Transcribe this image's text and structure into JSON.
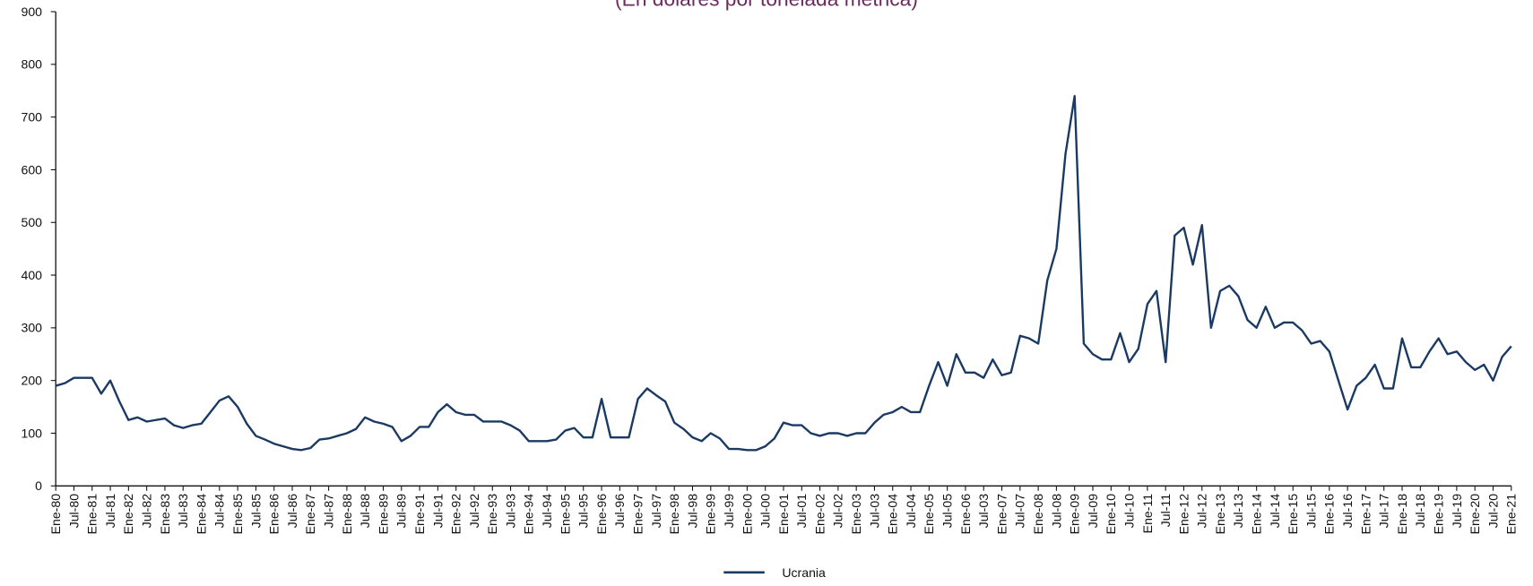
{
  "chart_data": {
    "type": "line",
    "subtitle": "(En dólares por tonelada métrica)",
    "categories": [
      "Ene-80",
      null,
      "Jul-80",
      null,
      "Ene-81",
      null,
      "Jul-81",
      null,
      "Ene-82",
      null,
      "Jul-82",
      null,
      "Ene-83",
      null,
      "Jul-83",
      null,
      "Ene-84",
      null,
      "Jul-84",
      null,
      "Ene-85",
      null,
      "Jul-85",
      null,
      "Ene-86",
      null,
      "Jul-86",
      null,
      "Ene-87",
      null,
      "Jul-87",
      null,
      "Ene-88",
      null,
      "Jul-88",
      null,
      "Ene-89",
      null,
      "Jul-89",
      null,
      "Ene-91",
      null,
      "Jul-91",
      null,
      "Ene-92",
      null,
      "Jul-92",
      null,
      "Ene-93",
      null,
      "Jul-93",
      null,
      "Ene-94",
      null,
      "Jul-94",
      null,
      "Ene-95",
      null,
      "Jul-95",
      null,
      "Ene-96",
      null,
      "Jul-96",
      null,
      "Ene-97",
      null,
      "Jul-97",
      null,
      "Ene-98",
      null,
      "Jul-98",
      null,
      "Ene-99",
      null,
      "Jul-99",
      null,
      "Ene-00",
      null,
      "Jul-00",
      null,
      "Ene-01",
      null,
      "Jul-01",
      null,
      "Ene-02",
      null,
      "Jul-02",
      null,
      "Ene-03",
      null,
      "Jul-03",
      null,
      "Ene-04",
      null,
      "Jul-04",
      null,
      "Ene-05",
      null,
      "Jul-05",
      null,
      "Ene-06",
      null,
      "Jul-03",
      null,
      "Ene-07",
      null,
      "Jul-07",
      null,
      "Ene-08",
      null,
      "Jul-08",
      null,
      "Ene-09",
      null,
      "Jul-09",
      null,
      "Ene-10",
      null,
      "Jul-10",
      null,
      "Ene-11",
      null,
      "Jul-11",
      null,
      "Ene-12",
      null,
      "Jul-12",
      null,
      "Ene-13",
      null,
      "Jul-13",
      null,
      "Ene-14",
      null,
      "Jul-14",
      null,
      "Ene-15",
      null,
      "Jul-15",
      null,
      "Ene-16",
      null,
      "Jul-16",
      null,
      "Ene-17",
      null,
      "Jul-17",
      null,
      "Ene-18",
      null,
      "Jul-18",
      null,
      "Ene-19",
      null,
      "Jul-19",
      null,
      "Ene-20",
      null,
      "Jul-20",
      null,
      "Ene-21"
    ],
    "series": [
      {
        "name": "Ucrania",
        "color": "#1a3a63",
        "values": [
          190,
          195,
          205,
          205,
          205,
          175,
          200,
          160,
          125,
          130,
          122,
          125,
          128,
          115,
          110,
          115,
          118,
          140,
          162,
          170,
          150,
          118,
          95,
          88,
          80,
          75,
          70,
          68,
          72,
          88,
          90,
          95,
          100,
          108,
          130,
          122,
          118,
          112,
          85,
          95,
          112,
          112,
          140,
          155,
          140,
          135,
          135,
          122,
          122,
          122,
          115,
          105,
          85,
          85,
          85,
          88,
          105,
          110,
          92,
          92,
          165,
          92,
          92,
          92,
          165,
          185,
          172,
          160,
          120,
          108,
          92,
          85,
          100,
          90,
          70,
          70,
          68,
          68,
          75,
          90,
          120,
          115,
          115,
          100,
          95,
          100,
          100,
          95,
          100,
          100,
          120,
          135,
          140,
          150,
          140,
          140,
          190,
          235,
          190,
          250,
          215,
          215,
          205,
          240,
          210,
          215,
          285,
          280,
          270,
          390,
          450,
          630,
          740,
          270,
          250,
          240,
          240,
          290,
          235,
          260,
          345,
          370,
          235,
          475,
          490,
          420,
          495,
          300,
          370,
          380,
          360,
          315,
          300,
          340,
          300,
          310,
          310,
          295,
          270,
          275,
          255,
          200,
          145,
          190,
          205,
          230,
          185,
          185,
          280,
          225,
          225,
          255,
          280,
          250,
          255,
          235,
          220,
          230,
          200,
          245,
          265
        ]
      }
    ],
    "ylim": [
      0,
      900
    ],
    "yticks": [
      0,
      100,
      200,
      300,
      400,
      500,
      600,
      700,
      800,
      900
    ]
  }
}
